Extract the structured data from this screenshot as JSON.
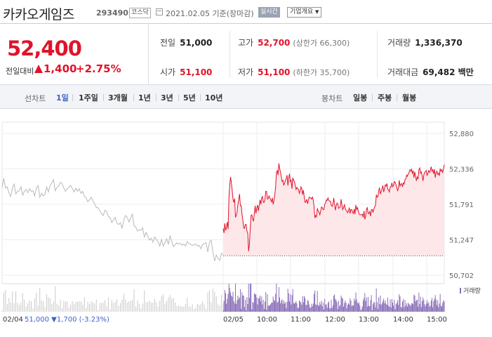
{
  "header": {
    "title": "카카오게임즈",
    "code": "293490",
    "market": "코스닥",
    "date": "2021.02.05 기준(장마감)",
    "realtime": "실시간",
    "company_info": "기업개요"
  },
  "price_panel": {
    "price": "52,400",
    "change_label": "전일대비",
    "change": "1,400",
    "change_pct": "+2.75%",
    "direction": "up",
    "color_up": "#e0132b",
    "color_down": "#3a62c8"
  },
  "stats": {
    "prev_close_label": "전일",
    "prev_close": "51,000",
    "high_label": "고가",
    "high": "52,700",
    "upper_limit": "(상한가 66,300)",
    "volume_label": "거래량",
    "volume": "1,336,370",
    "open_label": "시가",
    "open": "51,100",
    "low_label": "저가",
    "low": "51,100",
    "lower_limit": "(하한가 35,700)",
    "amount_label": "거래대금",
    "amount": "69,482 백만"
  },
  "tabs": {
    "line_label": "선차트",
    "line_items": [
      "1일",
      "1주일",
      "3개월",
      "1년",
      "3년",
      "5년",
      "10년"
    ],
    "candle_label": "봉차트",
    "candle_items": [
      "일봉",
      "주봉",
      "월봉"
    ],
    "active": "1일"
  },
  "chart_data": {
    "type": "line",
    "ylim": [
      50702,
      52880
    ],
    "yticks": [
      "52,880",
      "52,336",
      "51,791",
      "51,247",
      "50,702"
    ],
    "xticks": [
      "02/05",
      "10:00",
      "11:00",
      "12:00",
      "13:00",
      "14:00",
      "15:00"
    ],
    "prev_close": 51000,
    "volume_legend": "거래량",
    "series": [
      {
        "date": "02/04",
        "color": "#b9b9b9",
        "values": [
          52050,
          52190,
          52040,
          52060,
          51960,
          51910,
          52040,
          52100,
          51950,
          51990,
          52000,
          52060,
          51930,
          51990,
          52020,
          51970,
          52030,
          51990,
          52000,
          51920,
          52040,
          52080,
          51900,
          51960,
          51920,
          51940,
          52060,
          51980,
          52080,
          52120,
          52170,
          52000,
          52050,
          52070,
          52130,
          52110,
          52040,
          51990,
          52030,
          52050,
          52080,
          52030,
          51980,
          52040,
          51990,
          52030,
          51960,
          51990,
          51910,
          51890,
          51830,
          51860,
          51900,
          51840,
          51800,
          51740,
          51740,
          51690,
          51650,
          51620,
          51700,
          51680,
          51600,
          51590,
          51510,
          51550,
          51590,
          51500,
          51480,
          51510,
          51420,
          51550,
          51620,
          51590,
          51520,
          51580,
          51640,
          51460,
          51440,
          51380,
          51400,
          51390,
          51430,
          51290,
          51360,
          51300,
          51240,
          51270,
          51210,
          51290,
          51250,
          51220,
          51150,
          51250,
          51150,
          51200,
          51260,
          51180,
          51310,
          51220,
          51140,
          51170,
          51200,
          51180,
          51190,
          51160,
          51180,
          51150,
          51220,
          51190,
          51180,
          51160,
          51170,
          51180,
          51150,
          51160,
          51110,
          51170,
          51190,
          51200,
          51060,
          51210,
          51240,
          51060,
          50920,
          51010,
          50960,
          50930,
          51040,
          51020
        ]
      },
      {
        "date": "02/05",
        "color": "#e0132b",
        "fill": "#fde7e9",
        "values": [
          51420,
          51350,
          51500,
          51390,
          51440,
          51520,
          51410,
          51900,
          52080,
          52210,
          52120,
          52010,
          51870,
          51820,
          51880,
          51590,
          51620,
          51670,
          51790,
          51870,
          51950,
          51770,
          51770,
          51640,
          51550,
          51430,
          51420,
          51480,
          51480,
          51380,
          51350,
          51070,
          51170,
          51410,
          51620,
          51630,
          51570,
          51530,
          51640,
          51770,
          51650,
          51730,
          51780,
          51690,
          51770,
          51860,
          51790,
          51890,
          51910,
          51820,
          51820,
          51870,
          51990,
          51990,
          51870,
          51880,
          51920,
          51890,
          51860,
          51830,
          51890,
          51790,
          51850,
          51930,
          52060,
          52280,
          52310,
          52240,
          52420,
          52340,
          52280,
          52210,
          52140,
          52160,
          52080,
          52120,
          52160,
          52180,
          52240,
          52080,
          52190,
          52260,
          52140,
          52160,
          52030,
          52200,
          52160,
          52140,
          52080,
          52020,
          52050,
          52030,
          52020,
          51960,
          52000,
          52060,
          52030,
          51940,
          52010,
          51900,
          51820,
          51830,
          51870,
          51800,
          51850,
          51900,
          51890,
          51890,
          51870,
          51900,
          51860,
          51750,
          51580,
          51620,
          51600,
          51730,
          51690,
          51670,
          51630,
          51680,
          51750,
          51740,
          51710,
          51710,
          51790,
          51810,
          51860,
          51850,
          51890,
          51850,
          51840,
          51840,
          51780,
          51760,
          51790,
          51890,
          51790,
          51700,
          51770,
          51810,
          51800,
          51730,
          51740,
          51750,
          51870,
          51780,
          51710,
          51740,
          51790,
          51730,
          51700,
          51690,
          51660,
          51690,
          51740,
          51650,
          51710,
          51710,
          51670,
          51650,
          51720,
          51640,
          51780,
          51710,
          51740,
          51690,
          51640,
          51630,
          51630,
          51630,
          51640,
          51590,
          51690,
          51560,
          51610,
          51720,
          51740,
          51650,
          51650,
          51680,
          51610,
          51710,
          51710,
          51670,
          51720,
          51750,
          51770,
          51940,
          51900,
          51910,
          52010,
          52040,
          51950,
          51990,
          52030,
          52080,
          51980,
          52030,
          52090,
          52070,
          52110,
          52020,
          52010,
          51980,
          52060,
          52060,
          52120,
          52060,
          52080,
          52140,
          52130,
          52090,
          52050,
          52000,
          52040,
          52160,
          52070,
          52100,
          52110,
          52060,
          52120,
          52100,
          52170,
          52180,
          52240,
          52220,
          52260,
          52280,
          52320,
          52300,
          52330,
          52270,
          52310,
          52200,
          52290,
          52220,
          52150,
          52210,
          52180,
          52320,
          52350,
          52270,
          52290,
          52230,
          52150,
          52240,
          52280,
          52290,
          52310,
          52230,
          52270,
          52310,
          52280,
          52310,
          52370,
          52300,
          52320,
          52260,
          52330,
          52200,
          52280,
          52300,
          52250,
          52270,
          52230,
          52340,
          52300,
          52320,
          52280,
          52330,
          52400
        ]
      }
    ]
  },
  "footer": {
    "prev_date": "02/04",
    "prev_close_info": "51,000 ▼1,700 (-3.23%)"
  }
}
